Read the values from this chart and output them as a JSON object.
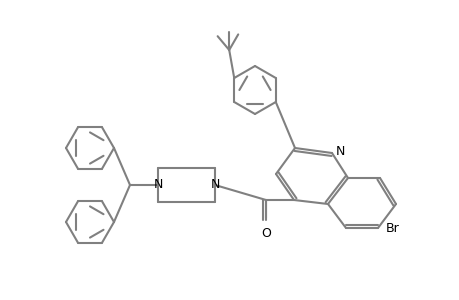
{
  "bg_color": "#ffffff",
  "line_color": "#808080",
  "lw": 1.5,
  "font_size": 9,
  "atoms": {
    "N_q": [
      0.62,
      0.52
    ],
    "N_label": "N",
    "Br_label": "Br",
    "O_label": "O",
    "N_pip1": "N",
    "N_pip2": "N"
  }
}
